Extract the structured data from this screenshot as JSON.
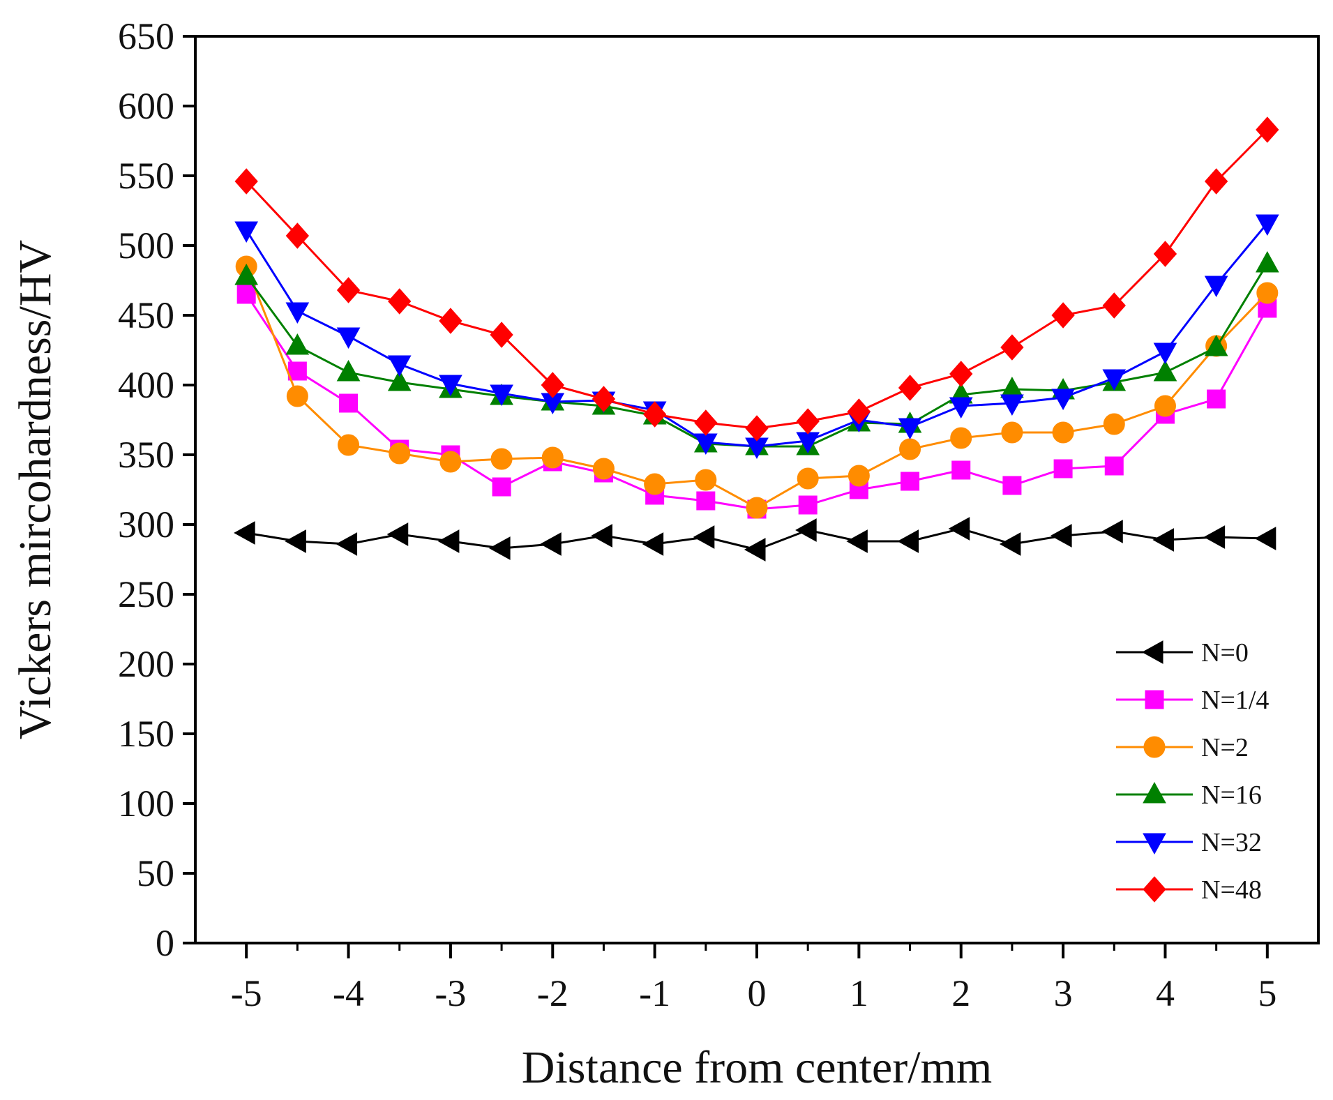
{
  "chart_data": {
    "type": "line",
    "title": "",
    "xlabel": "Distance from center/mm",
    "ylabel": "Vickers mircohardness/HV",
    "xlim": [
      -5.5,
      5.5
    ],
    "ylim": [
      0,
      650
    ],
    "xticks": [
      -5,
      -4,
      -3,
      -2,
      -1,
      0,
      1,
      2,
      3,
      4,
      5
    ],
    "yticks": [
      0,
      50,
      100,
      150,
      200,
      250,
      300,
      350,
      400,
      450,
      500,
      550,
      600,
      650
    ],
    "xtick_labels": [
      "-5",
      "-4",
      "-3",
      "-2",
      "-1",
      "0",
      "1",
      "2",
      "3",
      "4",
      "5"
    ],
    "ytick_labels": [
      "0",
      "50",
      "100",
      "150",
      "200",
      "250",
      "300",
      "350",
      "400",
      "450",
      "500",
      "550",
      "600",
      "650"
    ],
    "grid": false,
    "legend_position": "bottom-right",
    "x": [
      -5,
      -4.5,
      -4,
      -3.5,
      -3,
      -2.5,
      -2,
      -1.5,
      -1,
      -0.5,
      0,
      0.5,
      1,
      1.5,
      2,
      2.5,
      3,
      3.5,
      4,
      4.5,
      5
    ],
    "series": [
      {
        "name": "N=0",
        "color": "#000000",
        "marker": "triangle-left",
        "values": [
          294,
          288,
          286,
          293,
          288,
          283,
          286,
          292,
          286,
          291,
          282,
          296,
          288,
          288,
          297,
          286,
          292,
          295,
          289,
          291,
          290
        ]
      },
      {
        "name": "N=1/4",
        "color": "#ff00ff",
        "marker": "square",
        "values": [
          465,
          410,
          387,
          354,
          350,
          327,
          345,
          337,
          321,
          317,
          311,
          314,
          325,
          331,
          339,
          328,
          340,
          342,
          379,
          390,
          455
        ]
      },
      {
        "name": "N=2",
        "color": "#ff8c00",
        "marker": "circle",
        "values": [
          485,
          392,
          357,
          351,
          345,
          347,
          348,
          340,
          329,
          332,
          312,
          333,
          335,
          354,
          362,
          366,
          366,
          372,
          385,
          428,
          466
        ]
      },
      {
        "name": "N=16",
        "color": "#008000",
        "marker": "triangle-up",
        "values": [
          478,
          428,
          409,
          402,
          397,
          392,
          388,
          385,
          378,
          358,
          356,
          356,
          373,
          372,
          393,
          397,
          396,
          402,
          409,
          427,
          487
        ]
      },
      {
        "name": "N=32",
        "color": "#0000ff",
        "marker": "triangle-down",
        "values": [
          511,
          453,
          435,
          415,
          401,
          394,
          388,
          389,
          382,
          359,
          356,
          360,
          375,
          370,
          385,
          387,
          391,
          405,
          424,
          472,
          516
        ]
      },
      {
        "name": "N=48",
        "color": "#ff0000",
        "marker": "diamond",
        "values": [
          546,
          507,
          468,
          460,
          446,
          436,
          400,
          390,
          379,
          373,
          369,
          374,
          381,
          398,
          408,
          427,
          450,
          457,
          494,
          546,
          583
        ]
      }
    ]
  }
}
